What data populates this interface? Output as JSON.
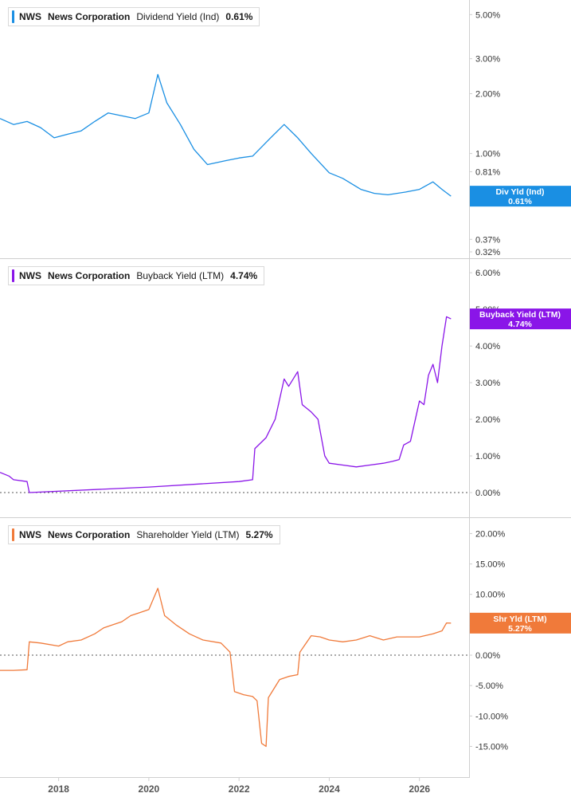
{
  "chart_data": [
    {
      "type": "line",
      "ticker": "NWS",
      "company": "News Corporation",
      "metric": "Dividend Yield (Ind)",
      "current_value": "0.61%",
      "badge_label": "Div Yld (Ind)",
      "badge_value": "0.61%",
      "color": "#1a8fe3",
      "scale": "log",
      "ylim": [
        0.32,
        5.5
      ],
      "y_ticks": [
        "5.00%",
        "3.00%",
        "2.00%",
        "1.00%",
        "0.81%",
        "0.59%",
        "0.37%",
        "0.32%"
      ],
      "y_tick_values": [
        5.0,
        3.0,
        2.0,
        1.0,
        0.81,
        0.59,
        0.37,
        0.32
      ],
      "series": [
        {
          "x": [
            2016.7,
            2017.0,
            2017.3,
            2017.6,
            2017.9,
            2018.2,
            2018.5,
            2018.8,
            2019.1,
            2019.4,
            2019.7,
            2020.0,
            2020.2,
            2020.4,
            2020.7,
            2021.0,
            2021.3,
            2021.7,
            2022.0,
            2022.3,
            2022.7,
            2023.0,
            2023.3,
            2023.6,
            2024.0,
            2024.3,
            2024.7,
            2025.0,
            2025.3,
            2025.7,
            2026.0,
            2026.3,
            2026.5,
            2026.7
          ],
          "y": [
            1.5,
            1.4,
            1.45,
            1.35,
            1.2,
            1.25,
            1.3,
            1.45,
            1.6,
            1.55,
            1.5,
            1.6,
            2.5,
            1.8,
            1.4,
            1.05,
            0.88,
            0.92,
            0.95,
            0.97,
            1.2,
            1.4,
            1.2,
            1.0,
            0.8,
            0.75,
            0.66,
            0.63,
            0.62,
            0.64,
            0.66,
            0.72,
            0.66,
            0.61
          ]
        }
      ]
    },
    {
      "type": "line",
      "ticker": "NWS",
      "company": "News Corporation",
      "metric": "Buyback Yield (LTM)",
      "current_value": "4.74%",
      "badge_label": "Buyback Yield (LTM)",
      "badge_value": "4.74%",
      "color": "#8a15e8",
      "ylim": [
        -0.5,
        6.2
      ],
      "y_ticks": [
        "6.00%",
        "5.00%",
        "4.00%",
        "3.00%",
        "2.00%",
        "1.00%",
        "0.00%"
      ],
      "y_tick_values": [
        6,
        5,
        4,
        3,
        2,
        1,
        0
      ],
      "series": [
        {
          "x": [
            2016.7,
            2016.9,
            2017.0,
            2017.3,
            2017.35,
            2020.0,
            2022.0,
            2022.3,
            2022.35,
            2022.6,
            2022.8,
            2023.0,
            2023.1,
            2023.3,
            2023.4,
            2023.6,
            2023.75,
            2023.9,
            2024.0,
            2024.3,
            2024.6,
            2024.9,
            2025.2,
            2025.4,
            2025.55,
            2025.65,
            2025.8,
            2026.0,
            2026.1,
            2026.2,
            2026.3,
            2026.4,
            2026.5,
            2026.6,
            2026.7
          ],
          "y": [
            0.55,
            0.45,
            0.35,
            0.3,
            0.0,
            0.15,
            0.3,
            0.35,
            1.2,
            1.5,
            2.0,
            3.1,
            2.9,
            3.3,
            2.4,
            2.2,
            2.0,
            1.0,
            0.8,
            0.75,
            0.7,
            0.75,
            0.8,
            0.85,
            0.9,
            1.3,
            1.4,
            2.5,
            2.4,
            3.2,
            3.5,
            3.0,
            4.0,
            4.8,
            4.74
          ]
        }
      ]
    },
    {
      "type": "line",
      "ticker": "NWS",
      "company": "News Corporation",
      "metric": "Shareholder Yield (LTM)",
      "current_value": "5.27%",
      "badge_label": "Shr Yld (LTM)",
      "badge_value": "5.27%",
      "color": "#f07a3a",
      "ylim": [
        -19,
        21.5
      ],
      "y_ticks": [
        "20.00%",
        "15.00%",
        "10.00%",
        "5.00%",
        "0.00%",
        "-5.00%",
        "-10.00%",
        "-15.00%"
      ],
      "y_tick_values": [
        20,
        15,
        10,
        5,
        0,
        -5,
        -10,
        -15
      ],
      "series": [
        {
          "x": [
            2016.7,
            2017.0,
            2017.3,
            2017.35,
            2017.6,
            2018.0,
            2018.2,
            2018.5,
            2018.8,
            2019.0,
            2019.2,
            2019.4,
            2019.6,
            2019.8,
            2020.0,
            2020.2,
            2020.35,
            2020.6,
            2020.9,
            2021.2,
            2021.6,
            2021.8,
            2021.9,
            2022.1,
            2022.3,
            2022.4,
            2022.5,
            2022.6,
            2022.65,
            2022.9,
            2023.1,
            2023.3,
            2023.35,
            2023.6,
            2023.8,
            2024.0,
            2024.3,
            2024.6,
            2024.9,
            2025.2,
            2025.5,
            2025.8,
            2026.0,
            2026.3,
            2026.5,
            2026.6,
            2026.7
          ],
          "y": [
            -2.5,
            -2.5,
            -2.4,
            2.2,
            2.0,
            1.5,
            2.2,
            2.5,
            3.5,
            4.5,
            5.0,
            5.5,
            6.5,
            7.0,
            7.5,
            11.0,
            6.5,
            5.0,
            3.5,
            2.5,
            2.0,
            0.5,
            -6.0,
            -6.5,
            -6.8,
            -7.5,
            -14.5,
            -15.0,
            -7.0,
            -4.0,
            -3.5,
            -3.2,
            0.5,
            3.2,
            3.0,
            2.5,
            2.2,
            2.5,
            3.2,
            2.5,
            3.0,
            3.0,
            3.0,
            3.5,
            4.0,
            5.3,
            5.27
          ]
        }
      ]
    }
  ],
  "x_axis": {
    "ticks": [
      "2018",
      "2020",
      "2022",
      "2024",
      "2026"
    ],
    "tick_values": [
      2018,
      2020,
      2022,
      2024,
      2026
    ],
    "xlim": [
      2016.7,
      2027.1
    ]
  }
}
